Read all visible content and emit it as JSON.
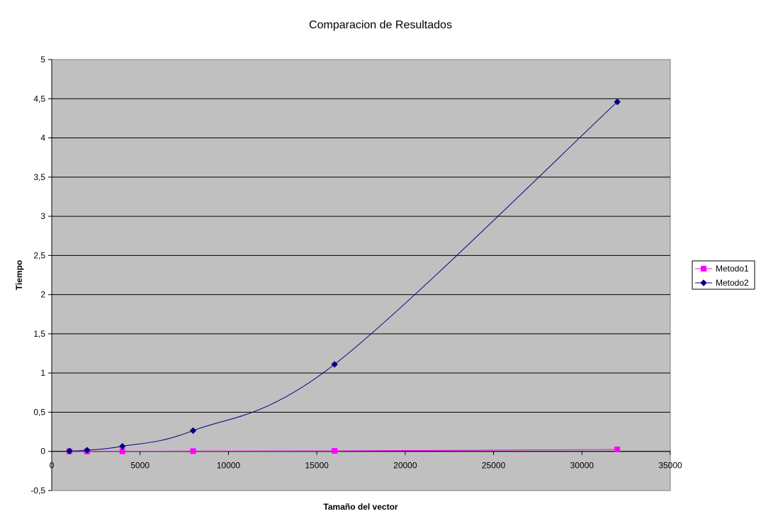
{
  "chart_data": {
    "type": "line",
    "title": "Comparacion de Resultados",
    "xlabel": "Tamaño del vector",
    "ylabel": "Tiempo",
    "xlim": [
      0,
      35000
    ],
    "ylim": [
      -0.5,
      5
    ],
    "x_ticks": [
      "0",
      "5000",
      "10000",
      "15000",
      "20000",
      "25000",
      "30000",
      "35000"
    ],
    "y_ticks": [
      "-0,5",
      "0",
      "0,5",
      "1",
      "1,5",
      "2",
      "2,5",
      "3",
      "3,5",
      "4",
      "4,5",
      "5"
    ],
    "grid": "horizontal",
    "plot_background": "#c0c0c0",
    "legend_position": "right",
    "series": [
      {
        "name": "Metodo1",
        "color": "#ff00ff",
        "marker": "square",
        "smooth": true,
        "points": [
          [
            1000,
            0.0
          ],
          [
            2000,
            0.0
          ],
          [
            4000,
            0.001
          ],
          [
            8000,
            0.003
          ],
          [
            16000,
            0.006
          ],
          [
            32000,
            0.025
          ]
        ]
      },
      {
        "name": "Metodo2",
        "color": "#000080",
        "marker": "diamond",
        "smooth": true,
        "points": [
          [
            1000,
            0.005
          ],
          [
            2000,
            0.015
          ],
          [
            4000,
            0.065
          ],
          [
            8000,
            0.265
          ],
          [
            16000,
            1.11
          ],
          [
            32000,
            4.46
          ]
        ]
      }
    ]
  }
}
